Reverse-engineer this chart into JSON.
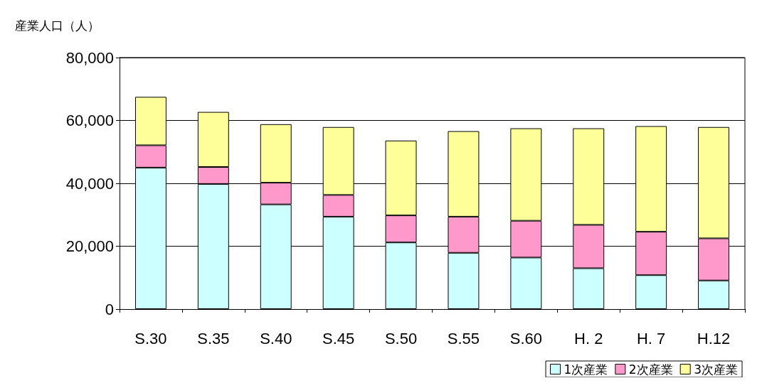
{
  "chart_data": {
    "type": "bar",
    "stacked": true,
    "ylabel": "産業人口（人）",
    "categories": [
      "S.30",
      "S.35",
      "S.40",
      "S.45",
      "S.50",
      "S.55",
      "S.60",
      "H. 2",
      "H. 7",
      "H.12"
    ],
    "series": [
      {
        "name": "1次産業",
        "color": "#ccffff",
        "values": [
          45000,
          39800,
          33300,
          29400,
          21200,
          17900,
          16400,
          13000,
          10800,
          9100
        ]
      },
      {
        "name": "2次産業",
        "color": "#ff99cc",
        "values": [
          7100,
          5400,
          6900,
          6900,
          8600,
          11500,
          11700,
          13800,
          13800,
          13400
        ]
      },
      {
        "name": "3次産業",
        "color": "#ffff99",
        "values": [
          15400,
          17500,
          18600,
          21600,
          23800,
          27200,
          29400,
          30700,
          33600,
          35400
        ]
      }
    ],
    "ylim": [
      0,
      80000
    ],
    "yticks": [
      0,
      {
        "value": 20000,
        "label": "20,000"
      },
      {
        "value": 40000,
        "label": "40,000"
      },
      {
        "value": 60000,
        "label": "60,000"
      },
      {
        "value": 80000,
        "label": "80,000"
      }
    ],
    "grid": "y",
    "legend": "bottom right"
  }
}
